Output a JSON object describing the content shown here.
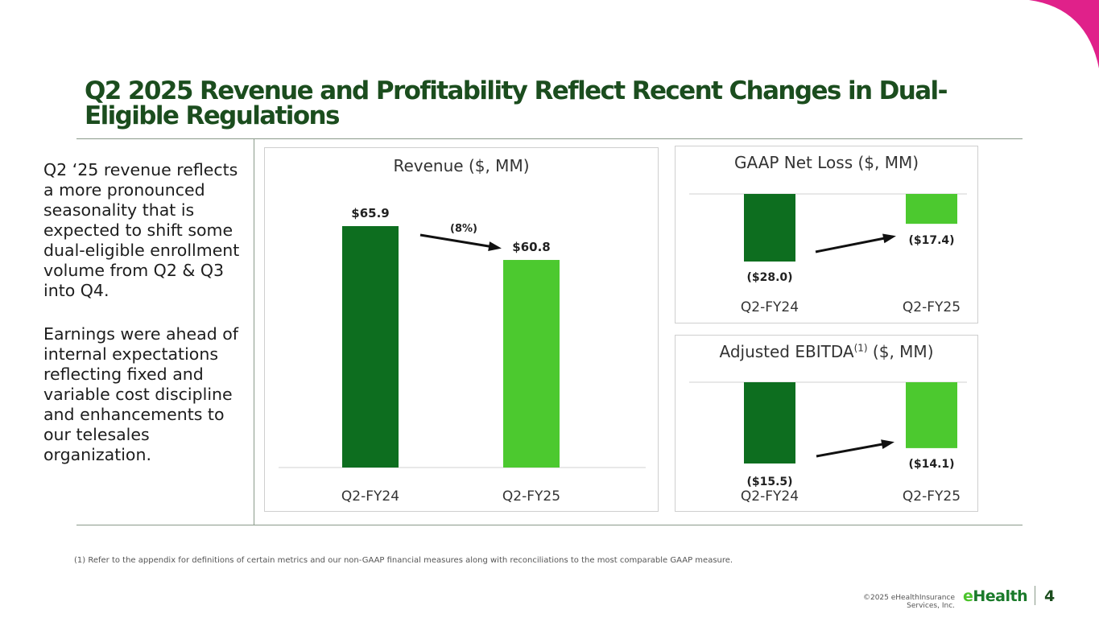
{
  "title": "Q2 2025 Revenue and Profitability Reflect Recent Changes in Dual-Eligible Regulations",
  "body": {
    "paragraph_1": "Q2 ‘25 revenue reflects a more pronounced seasonality that is expected to shift some dual-eligible enrollment volume from Q2 & Q3 into Q4.",
    "paragraph_2": "Earnings were ahead of internal expectations reflecting fixed and variable cost discipline and enhancements to our telesales organization."
  },
  "footnote": "(1)    Refer to the appendix for definitions of certain metrics and our non-GAAP financial measures along with reconciliations to the most comparable GAAP measure.",
  "footer": {
    "copyright": "©2025 eHealthInsurance Services, Inc.",
    "logo": "eHealth",
    "page": "4"
  },
  "colors": {
    "title": "#1b4d1e",
    "dark_green": "#0d6e1f",
    "light_green": "#4cc92f",
    "accent_pink": "#e0218a"
  },
  "chart_data": [
    {
      "type": "bar",
      "title": "Revenue ($, MM)",
      "categories": [
        "Q2-FY24",
        "Q2-FY25"
      ],
      "values": [
        65.9,
        60.8
      ],
      "labels": [
        "$65.9",
        "$60.8"
      ],
      "change_label": "(8%)",
      "ylim": [
        29.5,
        70
      ]
    },
    {
      "type": "bar",
      "title": "GAAP Net Loss ($, MM)",
      "categories": [
        "Q2-FY24",
        "Q2-FY25"
      ],
      "values": [
        -28.0,
        -17.4
      ],
      "labels": [
        "($28.0)",
        "($17.4)"
      ],
      "ylim": [
        -30,
        -9
      ]
    },
    {
      "type": "bar",
      "title": "Adjusted EBITDA",
      "title_sup": "(1)",
      "title_suffix": " ($, MM)",
      "categories": [
        "Q2-FY24",
        "Q2-FY25"
      ],
      "values": [
        -15.5,
        -14.1
      ],
      "labels": [
        "($15.5)",
        "($14.1)"
      ],
      "ylim": [
        -16,
        -8.1
      ]
    }
  ]
}
